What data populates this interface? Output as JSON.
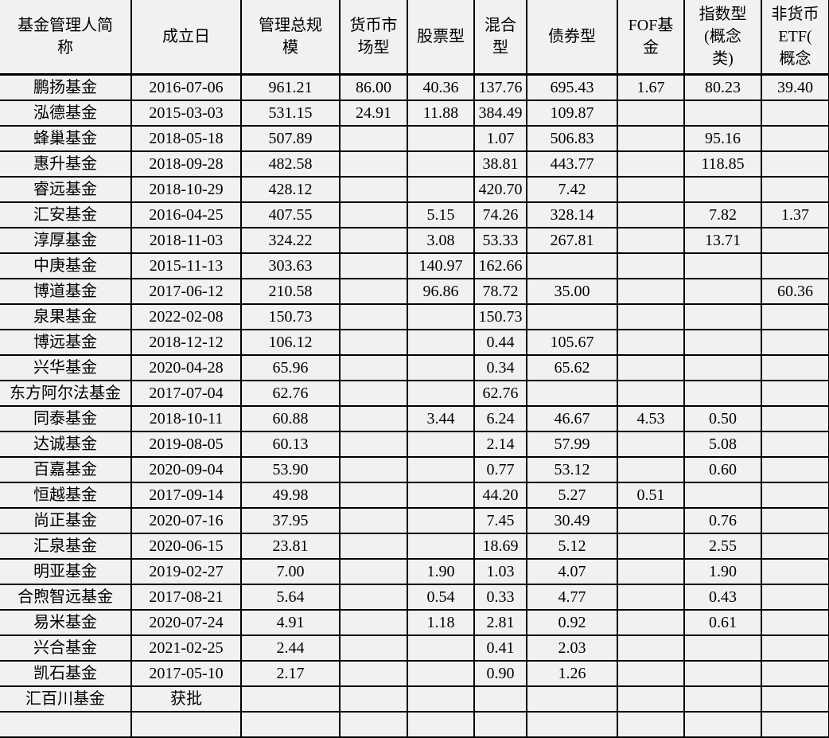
{
  "chart_data": {
    "type": "table",
    "columns": [
      "基金管理人简称",
      "成立日",
      "管理总规模",
      "货币市场型",
      "股票型",
      "混合型",
      "债券型",
      "FOF基金",
      "指数型(概念类)",
      "非货币ETF(概念"
    ],
    "header_display": [
      "基金管理人简\n称",
      "成立日",
      "管理总规\n模",
      "货币市\n场型",
      "股票型",
      "混合\n型",
      "债券型",
      "FOF基\n金",
      "指数型\n(概念\n类)",
      "非货币\nETF(\n概念"
    ],
    "rows": [
      [
        "鹏扬基金",
        "2016-07-06",
        "961.21",
        "86.00",
        "40.36",
        "137.76",
        "695.43",
        "1.67",
        "80.23",
        "39.40"
      ],
      [
        "泓德基金",
        "2015-03-03",
        "531.15",
        "24.91",
        "11.88",
        "384.49",
        "109.87",
        "",
        "",
        ""
      ],
      [
        "蜂巢基金",
        "2018-05-18",
        "507.89",
        "",
        "",
        "1.07",
        "506.83",
        "",
        "95.16",
        ""
      ],
      [
        "惠升基金",
        "2018-09-28",
        "482.58",
        "",
        "",
        "38.81",
        "443.77",
        "",
        "118.85",
        ""
      ],
      [
        "睿远基金",
        "2018-10-29",
        "428.12",
        "",
        "",
        "420.70",
        "7.42",
        "",
        "",
        ""
      ],
      [
        "汇安基金",
        "2016-04-25",
        "407.55",
        "",
        "5.15",
        "74.26",
        "328.14",
        "",
        "7.82",
        "1.37"
      ],
      [
        "淳厚基金",
        "2018-11-03",
        "324.22",
        "",
        "3.08",
        "53.33",
        "267.81",
        "",
        "13.71",
        ""
      ],
      [
        "中庚基金",
        "2015-11-13",
        "303.63",
        "",
        "140.97",
        "162.66",
        "",
        "",
        "",
        ""
      ],
      [
        "博道基金",
        "2017-06-12",
        "210.58",
        "",
        "96.86",
        "78.72",
        "35.00",
        "",
        "",
        "60.36"
      ],
      [
        "泉果基金",
        "2022-02-08",
        "150.73",
        "",
        "",
        "150.73",
        "",
        "",
        "",
        ""
      ],
      [
        "博远基金",
        "2018-12-12",
        "106.12",
        "",
        "",
        "0.44",
        "105.67",
        "",
        "",
        ""
      ],
      [
        "兴华基金",
        "2020-04-28",
        "65.96",
        "",
        "",
        "0.34",
        "65.62",
        "",
        "",
        ""
      ],
      [
        "东方阿尔法基金",
        "2017-07-04",
        "62.76",
        "",
        "",
        "62.76",
        "",
        "",
        "",
        ""
      ],
      [
        "同泰基金",
        "2018-10-11",
        "60.88",
        "",
        "3.44",
        "6.24",
        "46.67",
        "4.53",
        "0.50",
        ""
      ],
      [
        "达诚基金",
        "2019-08-05",
        "60.13",
        "",
        "",
        "2.14",
        "57.99",
        "",
        "5.08",
        ""
      ],
      [
        "百嘉基金",
        "2020-09-04",
        "53.90",
        "",
        "",
        "0.77",
        "53.12",
        "",
        "0.60",
        ""
      ],
      [
        "恒越基金",
        "2017-09-14",
        "49.98",
        "",
        "",
        "44.20",
        "5.27",
        "0.51",
        "",
        ""
      ],
      [
        "尚正基金",
        "2020-07-16",
        "37.95",
        "",
        "",
        "7.45",
        "30.49",
        "",
        "0.76",
        ""
      ],
      [
        "汇泉基金",
        "2020-06-15",
        "23.81",
        "",
        "",
        "18.69",
        "5.12",
        "",
        "2.55",
        ""
      ],
      [
        "明亚基金",
        "2019-02-27",
        "7.00",
        "",
        "1.90",
        "1.03",
        "4.07",
        "",
        "1.90",
        ""
      ],
      [
        "合煦智远基金",
        "2017-08-21",
        "5.64",
        "",
        "0.54",
        "0.33",
        "4.77",
        "",
        "0.43",
        ""
      ],
      [
        "易米基金",
        "2020-07-24",
        "4.91",
        "",
        "1.18",
        "2.81",
        "0.92",
        "",
        "0.61",
        ""
      ],
      [
        "兴合基金",
        "2021-02-25",
        "2.44",
        "",
        "",
        "0.41",
        "2.03",
        "",
        "",
        ""
      ],
      [
        "凯石基金",
        "2017-05-10",
        "2.17",
        "",
        "",
        "0.90",
        "1.26",
        "",
        "",
        ""
      ],
      [
        "汇百川基金",
        "获批",
        "",
        "",
        "",
        "",
        "",
        "",
        "",
        ""
      ]
    ],
    "partial_empty_row_at_bottom": true,
    "colors": {
      "cell_background": "#f1f1f2",
      "border": "#000000",
      "text": "#000000"
    }
  }
}
